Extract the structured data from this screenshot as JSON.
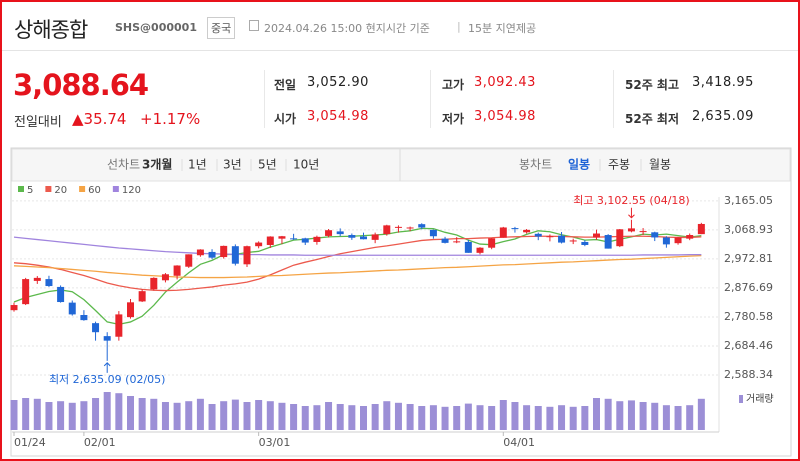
{
  "header": {
    "title": "상해종합",
    "code": "SHS@000001",
    "market": "중국",
    "timestamp": "2024.04.26 15:00 현지시간 기준",
    "delay": "15분 지연제공"
  },
  "quote": {
    "price": "3,088.64",
    "change_label": "전일대비",
    "change": "▲35.74",
    "change_pct": "+1.17%",
    "stats": [
      {
        "label": "전일",
        "value": "3,052.90"
      },
      {
        "label": "고가",
        "value": "3,092.43"
      },
      {
        "label": "52주 최고",
        "value": "3,418.95"
      },
      {
        "label": "시가",
        "value": "3,054.98"
      },
      {
        "label": "저가",
        "value": "3,054.98"
      },
      {
        "label": "52주 최저",
        "value": "2,635.09"
      }
    ]
  },
  "tabs": {
    "line_chart": {
      "label": "선차트",
      "periods": [
        "3개월",
        "1년",
        "3년",
        "5년",
        "10년"
      ]
    },
    "candle_chart": {
      "label": "봉차트",
      "periods": [
        "일봉",
        "주봉",
        "월봉"
      ]
    }
  },
  "chart_data": {
    "type": "candlestick",
    "categories": [
      "01/24",
      null,
      null,
      null,
      null,
      null,
      "02/01",
      null,
      null,
      null,
      null,
      null,
      null,
      null,
      null,
      null,
      null,
      null,
      null,
      null,
      null,
      "03/01",
      null,
      null,
      null,
      null,
      null,
      null,
      null,
      null,
      null,
      null,
      null,
      null,
      null,
      null,
      null,
      null,
      null,
      null,
      null,
      null,
      "04/01",
      null,
      null,
      null,
      null,
      null,
      null,
      null,
      null,
      null,
      null,
      null,
      null,
      null,
      null,
      null,
      null,
      null
    ],
    "open": [
      2803,
      2823,
      2900,
      2906,
      2880,
      2828,
      2787,
      2760,
      2717,
      2715,
      2780,
      2832,
      2872,
      2902,
      2917,
      2947,
      2985,
      2996,
      2979,
      3015,
      2955,
      3015,
      3019,
      3040,
      3041,
      3041,
      3029,
      3049,
      3064,
      3052,
      3047,
      3036,
      3055,
      3077,
      3076,
      3088,
      3069,
      3040,
      3028,
      3029,
      2993,
      3010,
      3043,
      3075,
      3061,
      3056,
      3045,
      3050,
      3034,
      3029,
      3044,
      3052,
      3015,
      3064,
      3064,
      3061,
      3044,
      3025,
      3040,
      3054.98
    ],
    "high": [
      2828,
      2910,
      2916,
      2917,
      2885,
      2835,
      2803,
      2765,
      2730,
      2800,
      2840,
      2872,
      2912,
      2926,
      2952,
      2988,
      3005,
      3005,
      3017,
      3021,
      3017,
      3031,
      3048,
      3049,
      3056,
      3043,
      3050,
      3072,
      3074,
      3057,
      3060,
      3060,
      3086,
      3084,
      3080,
      3091,
      3070,
      3046,
      3045,
      3036,
      3012,
      3042,
      3079,
      3079,
      3072,
      3060,
      3054,
      3062,
      3040,
      3035,
      3070,
      3055,
      3072,
      3102.55,
      3075,
      3063,
      3048,
      3045,
      3057,
      3092.43
    ],
    "low": [
      2798,
      2820,
      2890,
      2880,
      2828,
      2785,
      2768,
      2702,
      2635.09,
      2702,
      2775,
      2830,
      2868,
      2895,
      2905,
      2943,
      2980,
      2972,
      2974,
      2951,
      2946,
      3008,
      3009,
      3022,
      3036,
      3019,
      3020,
      3044,
      3048,
      3036,
      3037,
      3025,
      3050,
      3060,
      3065,
      3071,
      3040,
      3024,
      3025,
      2993,
      2988,
      3005,
      3043,
      3060,
      3057,
      3035,
      3031,
      3024,
      3022,
      3015,
      3036,
      3007,
      3012,
      3061,
      3052,
      3032,
      3010,
      3020,
      3035,
      3054.98
    ],
    "close": [
      2820,
      2906,
      2910,
      2883,
      2830,
      2789,
      2770,
      2730,
      2702,
      2789,
      2829,
      2866,
      2910,
      2922,
      2951,
      2988,
      3004,
      2977,
      3016,
      2957,
      3015,
      3027,
      3047,
      3048,
      3040,
      3027,
      3046,
      3068,
      3055,
      3043,
      3038,
      3054,
      3084,
      3079,
      3077,
      3077,
      3048,
      3026,
      3031,
      2993,
      3010,
      3041,
      3077,
      3074,
      3069,
      3047,
      3048,
      3027,
      3034,
      3019,
      3057,
      3007,
      3071,
      3074,
      3065,
      3044,
      3021,
      3044,
      3052,
      3088.64
    ],
    "up_color": "#e8242b",
    "down_color": "#2067d6",
    "series": [
      {
        "name": "5",
        "color": "#5cb94c",
        "values": [
          2830,
          2845,
          2855,
          2865,
          2870,
          2864,
          2838,
          2802,
          2764,
          2756,
          2764,
          2783,
          2819,
          2863,
          2896,
          2927,
          2955,
          2968,
          2987,
          2988,
          2994,
          2998,
          3012,
          3023,
          3035,
          3038,
          3042,
          3046,
          3047,
          3048,
          3050,
          3052,
          3055,
          3062,
          3066,
          3074,
          3073,
          3061,
          3052,
          3035,
          3022,
          3020,
          3030,
          3039,
          3054,
          3066,
          3063,
          3053,
          3045,
          3035,
          3037,
          3029,
          3038,
          3046,
          3055,
          3052,
          3055,
          3050,
          3045,
          3050
        ]
      },
      {
        "name": "20",
        "color": "#ec5a4d",
        "values": [
          2960,
          2957,
          2952,
          2946,
          2938,
          2928,
          2918,
          2906,
          2893,
          2884,
          2877,
          2872,
          2869,
          2868,
          2869,
          2872,
          2876,
          2880,
          2886,
          2890,
          2896,
          2906,
          2920,
          2936,
          2952,
          2962,
          2971,
          2981,
          2990,
          2997,
          3004,
          3011,
          3016,
          3022,
          3028,
          3034,
          3037,
          3038,
          3040,
          3040,
          3042,
          3043,
          3045,
          3046,
          3047,
          3048,
          3048,
          3047,
          3046,
          3045,
          3045,
          3046,
          3047,
          3048,
          3048,
          3047,
          3045,
          3044,
          3044,
          3046
        ]
      },
      {
        "name": "60",
        "color": "#f5a445",
        "values": [
          2950,
          2948,
          2946,
          2944,
          2941,
          2938,
          2935,
          2932,
          2928,
          2925,
          2922,
          2919,
          2917,
          2915,
          2913,
          2912,
          2911,
          2911,
          2911,
          2912,
          2913,
          2915,
          2917,
          2918,
          2920,
          2922,
          2924,
          2926,
          2927,
          2929,
          2931,
          2933,
          2935,
          2936,
          2938,
          2940,
          2942,
          2944,
          2945,
          2947,
          2949,
          2951,
          2953,
          2954,
          2956,
          2958,
          2960,
          2962,
          2963,
          2965,
          2967,
          2969,
          2971,
          2972,
          2974,
          2976,
          2978,
          2980,
          2982,
          2984
        ]
      },
      {
        "name": "120",
        "color": "#a084de",
        "values": [
          3045,
          3041,
          3037,
          3033,
          3029,
          3025,
          3021,
          3017,
          3013,
          3009,
          3006,
          3003,
          3000,
          2997,
          2995,
          2993,
          2991,
          2990,
          2989,
          2988,
          2987,
          2987,
          2986,
          2986,
          2986,
          2985,
          2985,
          2985,
          2985,
          2985,
          2985,
          2985,
          2985,
          2985,
          2985,
          2985,
          2985,
          2985,
          2985,
          2985,
          2985,
          2985,
          2985,
          2985,
          2985,
          2985,
          2985,
          2985,
          2985,
          2985,
          2985,
          2985,
          2985,
          2985,
          2986,
          2986,
          2986,
          2986,
          2987,
          2987
        ]
      }
    ],
    "volume": {
      "name": "거래량",
      "color": "#9c8fd6",
      "ylim": [
        0,
        100
      ],
      "values": [
        75,
        80,
        78,
        70,
        72,
        68,
        72,
        80,
        95,
        92,
        85,
        80,
        78,
        70,
        68,
        72,
        78,
        65,
        72,
        76,
        70,
        75,
        72,
        68,
        65,
        60,
        62,
        70,
        65,
        62,
        60,
        65,
        72,
        68,
        65,
        60,
        62,
        58,
        60,
        66,
        62,
        60,
        75,
        70,
        62,
        60,
        58,
        62,
        58,
        60,
        80,
        78,
        72,
        74,
        70,
        68,
        62,
        60,
        62,
        78
      ]
    },
    "ylim": [
      2565,
      3178
    ],
    "yticks": [
      {
        "value": 3165.05,
        "label": "3,165.05"
      },
      {
        "value": 3068.93,
        "label": "3,068.93"
      },
      {
        "value": 2972.81,
        "label": "2,972.81"
      },
      {
        "value": 2876.69,
        "label": "2,876.69"
      },
      {
        "value": 2780.58,
        "label": "2,780.58"
      },
      {
        "value": 2684.46,
        "label": "2,684.46"
      },
      {
        "value": 2588.34,
        "label": "2,588.34"
      }
    ],
    "grid": true,
    "annotations": [
      "최고 3,102.55 (04/18)",
      "최저 2,635.09 (02/05)"
    ]
  }
}
